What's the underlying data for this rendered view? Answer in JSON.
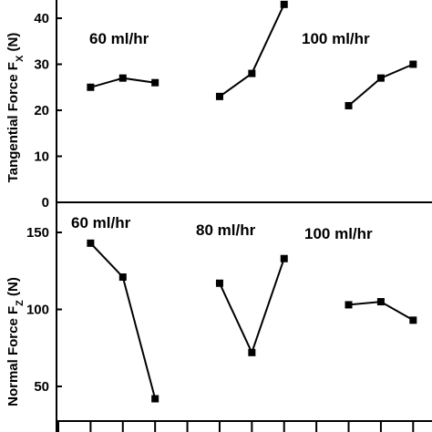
{
  "chart_data": [
    {
      "type": "line",
      "ylabel_main": "Tangential Force F",
      "ylabel_sub": "X",
      "ylabel_unit": " (N)",
      "ylim": [
        0,
        45
      ],
      "yticks": [
        0,
        10,
        20,
        30,
        40
      ],
      "grid": false,
      "annotations": [
        "60 ml/hr",
        "100 ml/hr"
      ],
      "series": [
        {
          "x": [
            1,
            2,
            3
          ],
          "values": [
            25,
            27,
            26
          ]
        },
        {
          "x": [
            5,
            6,
            7
          ],
          "values": [
            23,
            28,
            43
          ]
        },
        {
          "x": [
            9,
            10,
            11
          ],
          "values": [
            21,
            27,
            30
          ]
        }
      ]
    },
    {
      "type": "line",
      "ylabel_main": "Normal Force F",
      "ylabel_sub": "Z",
      "ylabel_unit": " (N)",
      "ylim": [
        35,
        160
      ],
      "yticks": [
        50,
        100,
        150
      ],
      "grid": false,
      "annotations": [
        "60 ml/hr",
        "80 ml/hr",
        "100 ml/hr"
      ],
      "series": [
        {
          "x": [
            1,
            2,
            3
          ],
          "values": [
            143,
            121,
            42
          ]
        },
        {
          "x": [
            5,
            6,
            7
          ],
          "values": [
            117,
            72,
            133
          ]
        },
        {
          "x": [
            9,
            10,
            11
          ],
          "values": [
            103,
            105,
            93
          ]
        }
      ]
    }
  ]
}
